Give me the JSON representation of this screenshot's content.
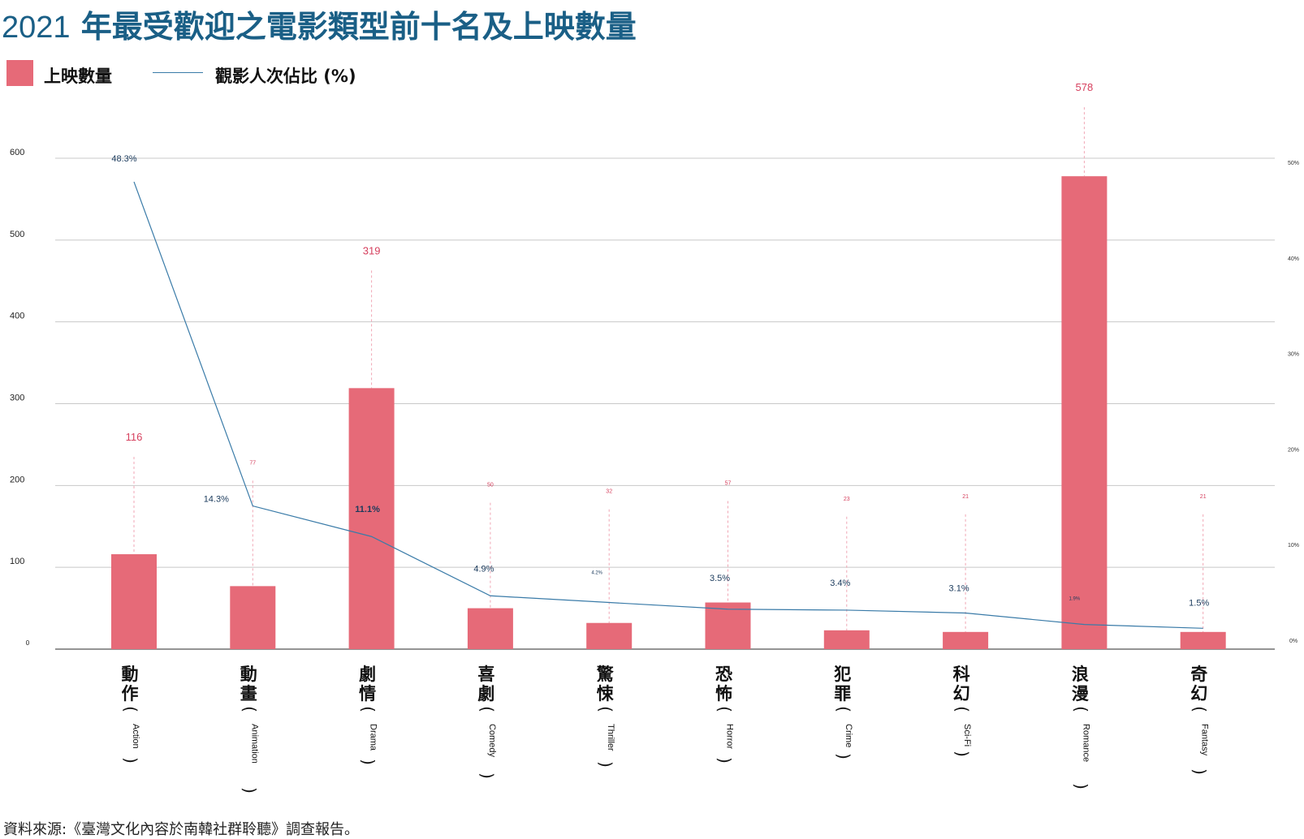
{
  "title": {
    "year": "2021",
    "main": " 年最受歡迎之電影類型前十名及上映數量"
  },
  "legend": {
    "bars": "上映數量",
    "line": "觀影人次佔比 (%)"
  },
  "source": "資料來源:《臺灣文化內容於南韓社群聆聽》調查報告。",
  "colors": {
    "bar": "#e66a78",
    "line": "#3a7ba8",
    "bar_label": "#d6405e",
    "line_label": "#1a3a5c",
    "grid": "#c8c8c8"
  },
  "chart_data": {
    "type": "bar",
    "title": "2021 年最受歡迎之電影類型前十名及上映數量",
    "categories": [
      {
        "cn": "動作",
        "en": "Action"
      },
      {
        "cn": "動畫",
        "en": "Animation"
      },
      {
        "cn": "劇情",
        "en": "Drama"
      },
      {
        "cn": "喜劇",
        "en": "Comedy"
      },
      {
        "cn": "驚悚",
        "en": "Thriller"
      },
      {
        "cn": "恐怖",
        "en": "Horror"
      },
      {
        "cn": "犯罪",
        "en": "Crime"
      },
      {
        "cn": "科幻",
        "en": "Sci-Fi"
      },
      {
        "cn": "浪漫",
        "en": "Romance"
      },
      {
        "cn": "奇幻",
        "en": "Fantasy"
      }
    ],
    "series": [
      {
        "name": "上映數量",
        "type": "bar",
        "axis": "left",
        "values": [
          116,
          77,
          319,
          50,
          32,
          57,
          23,
          21,
          578,
          21
        ]
      },
      {
        "name": "觀影人次佔比 (%)",
        "type": "line",
        "axis": "right",
        "values": [
          48.3,
          14.3,
          11.1,
          4.9,
          4.2,
          3.5,
          3.4,
          3.1,
          1.9,
          1.5
        ],
        "labels": [
          "48.3%",
          "14.3%",
          "11.1%",
          "4.9%",
          "4.2%",
          "3.5%",
          "3.4%",
          "3.1%",
          "1.9%",
          "1.5%"
        ]
      }
    ],
    "y_left": {
      "ticks": [
        0,
        100,
        200,
        300,
        400,
        500,
        600
      ],
      "range": [
        0,
        600
      ]
    },
    "y_right": {
      "ticks": [
        "0%",
        "10%",
        "20%",
        "30%",
        "40%",
        "50%"
      ],
      "range": [
        0,
        51.5
      ]
    },
    "grid": true,
    "legend_position": "top-left"
  }
}
